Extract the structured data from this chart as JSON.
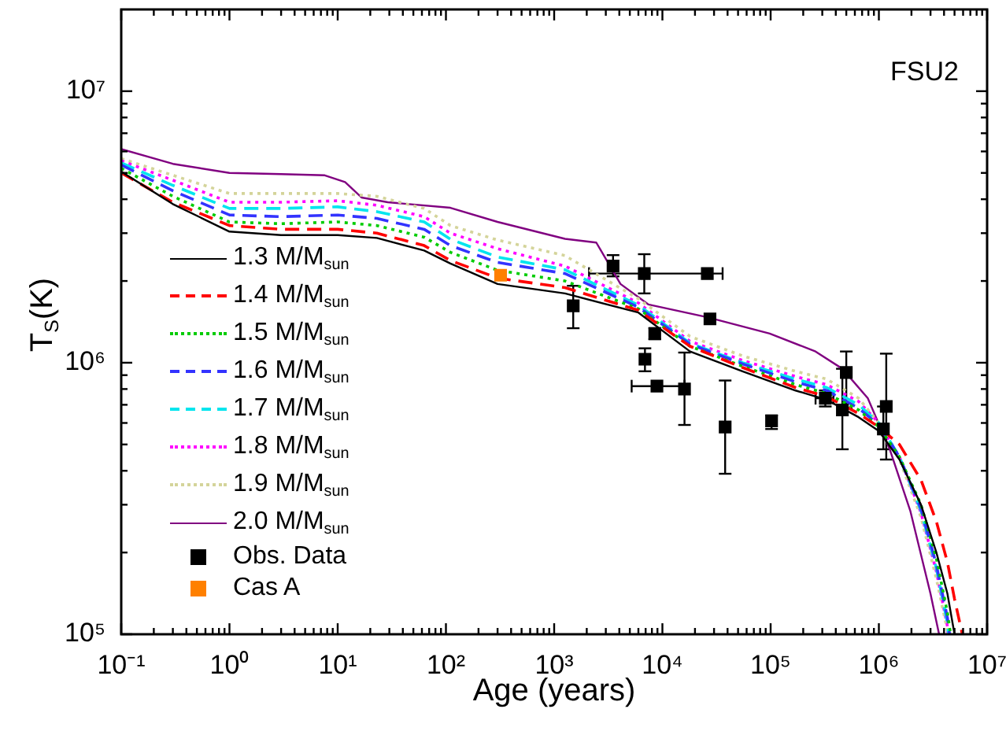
{
  "chart_data": {
    "type": "line",
    "title": "FSU2",
    "xlabel": "Age (years)",
    "ylabel": "T$_{S}$(K)",
    "log": "xy",
    "legend": "left",
    "xlim": [
      0.1,
      10000000
    ],
    "ylim": [
      100000,
      20000000
    ],
    "xticks": [
      {
        "value": 0.1,
        "label": "10⁻¹"
      },
      {
        "value": 0.2,
        "label": null
      },
      {
        "value": 0.3,
        "label": null
      },
      {
        "value": 0.4,
        "label": null
      },
      {
        "value": 0.5,
        "label": null
      },
      {
        "value": 0.6,
        "label": null
      },
      {
        "value": 0.7,
        "label": null
      },
      {
        "value": 0.8,
        "label": null
      },
      {
        "value": 0.9,
        "label": null
      },
      {
        "value": 1,
        "label": "10⁰"
      },
      {
        "value": 2,
        "label": null
      },
      {
        "value": 3,
        "label": null
      },
      {
        "value": 4,
        "label": null
      },
      {
        "value": 5,
        "label": null
      },
      {
        "value": 6,
        "label": null
      },
      {
        "value": 7,
        "label": null
      },
      {
        "value": 8,
        "label": null
      },
      {
        "value": 9,
        "label": null
      },
      {
        "value": 10,
        "label": "10¹"
      },
      {
        "value": 20,
        "label": null
      },
      {
        "value": 30,
        "label": null
      },
      {
        "value": 40,
        "label": null
      },
      {
        "value": 50,
        "label": null
      },
      {
        "value": 60,
        "label": null
      },
      {
        "value": 70,
        "label": null
      },
      {
        "value": 80,
        "label": null
      },
      {
        "value": 90,
        "label": null
      },
      {
        "value": 100,
        "label": "10²"
      },
      {
        "value": 200,
        "label": null
      },
      {
        "value": 300,
        "label": null
      },
      {
        "value": 400,
        "label": null
      },
      {
        "value": 500,
        "label": null
      },
      {
        "value": 600,
        "label": null
      },
      {
        "value": 700,
        "label": null
      },
      {
        "value": 800,
        "label": null
      },
      {
        "value": 900,
        "label": null
      },
      {
        "value": 1000,
        "label": "10³"
      },
      {
        "value": 2000,
        "label": null
      },
      {
        "value": 3000,
        "label": null
      },
      {
        "value": 4000,
        "label": null
      },
      {
        "value": 5000,
        "label": null
      },
      {
        "value": 6000,
        "label": null
      },
      {
        "value": 7000,
        "label": null
      },
      {
        "value": 8000,
        "label": null
      },
      {
        "value": 9000,
        "label": null
      },
      {
        "value": 10000,
        "label": "10⁴"
      },
      {
        "value": 20000,
        "label": null
      },
      {
        "value": 30000,
        "label": null
      },
      {
        "value": 40000,
        "label": null
      },
      {
        "value": 50000,
        "label": null
      },
      {
        "value": 60000,
        "label": null
      },
      {
        "value": 70000,
        "label": null
      },
      {
        "value": 80000,
        "label": null
      },
      {
        "value": 90000,
        "label": null
      },
      {
        "value": 100000,
        "label": "10⁵"
      },
      {
        "value": 200000,
        "label": null
      },
      {
        "value": 300000,
        "label": null
      },
      {
        "value": 400000,
        "label": null
      },
      {
        "value": 500000,
        "label": null
      },
      {
        "value": 600000,
        "label": null
      },
      {
        "value": 700000,
        "label": null
      },
      {
        "value": 800000,
        "label": null
      },
      {
        "value": 900000,
        "label": null
      },
      {
        "value": 1000000,
        "label": "10⁶"
      },
      {
        "value": 2000000,
        "label": null
      },
      {
        "value": 3000000,
        "label": null
      },
      {
        "value": 4000000,
        "label": null
      },
      {
        "value": 5000000,
        "label": null
      },
      {
        "value": 6000000,
        "label": null
      },
      {
        "value": 7000000,
        "label": null
      },
      {
        "value": 8000000,
        "label": null
      },
      {
        "value": 9000000,
        "label": null
      },
      {
        "value": 10000000,
        "label": "10⁷"
      }
    ],
    "yticks": [
      {
        "value": 100000,
        "label": "10⁵"
      },
      {
        "value": 200000,
        "label": null
      },
      {
        "value": 300000,
        "label": null
      },
      {
        "value": 400000,
        "label": null
      },
      {
        "value": 500000,
        "label": null
      },
      {
        "value": 600000,
        "label": null
      },
      {
        "value": 700000,
        "label": null
      },
      {
        "value": 800000,
        "label": null
      },
      {
        "value": 900000,
        "label": null
      },
      {
        "value": 1000000,
        "label": "10⁶"
      },
      {
        "value": 2000000,
        "label": null
      },
      {
        "value": 3000000,
        "label": null
      },
      {
        "value": 4000000,
        "label": null
      },
      {
        "value": 5000000,
        "label": null
      },
      {
        "value": 6000000,
        "label": null
      },
      {
        "value": 7000000,
        "label": null
      },
      {
        "value": 8000000,
        "label": null
      },
      {
        "value": 9000000,
        "label": null
      },
      {
        "value": 10000000,
        "label": "10⁷"
      }
    ],
    "series": [
      {
        "name": "1.3 M/M$_{sun}$",
        "type": "line",
        "color": "#000000",
        "line_style": "solid",
        "x": [
          0.1,
          0.3,
          1,
          3,
          10,
          23,
          63,
          110,
          300,
          1260,
          6000,
          18000,
          55000,
          170000,
          330000,
          650000,
          1000000,
          1550000,
          2450000,
          3400000,
          4300000,
          5000000
        ],
        "values": [
          5060000,
          3840000,
          3040000,
          2950000,
          2950000,
          2880000,
          2590000,
          2320000,
          1950000,
          1800000,
          1530000,
          1100000,
          930000,
          790000,
          730000,
          630000,
          560000,
          440000,
          300000,
          200000,
          141000,
          100000
        ]
      },
      {
        "name": "1.4 M/M$_{sun}$",
        "type": "line",
        "color": "#ff0000",
        "line_style": "dashed",
        "x": [
          0.1,
          0.3,
          1,
          3,
          10,
          23,
          63,
          110,
          300,
          1260,
          6000,
          18000,
          55000,
          170000,
          330000,
          650000,
          1000000,
          1550000,
          2450000,
          3400000,
          4300000,
          5000000,
          5900000
        ],
        "values": [
          5000000,
          3900000,
          3200000,
          3100000,
          3100000,
          3000000,
          2700000,
          2380000,
          2050000,
          1890000,
          1560000,
          1150000,
          960000,
          810000,
          750000,
          650000,
          580000,
          500000,
          370000,
          260000,
          184000,
          135000,
          100000
        ]
      },
      {
        "name": "1.5 M/M$_{sun}$",
        "type": "line",
        "color": "#00cc00",
        "line_style": "dotted",
        "x": [
          0.1,
          0.3,
          1,
          3,
          10,
          23,
          63,
          110,
          300,
          1260,
          6000,
          18000,
          55000,
          170000,
          330000,
          650000,
          1000000,
          1550000,
          2450000,
          3400000,
          4300000,
          4600000
        ],
        "values": [
          5200000,
          4100000,
          3300000,
          3250000,
          3300000,
          3200000,
          2900000,
          2550000,
          2190000,
          2000000,
          1580000,
          1150000,
          970000,
          830000,
          770000,
          670000,
          580000,
          450000,
          300000,
          190000,
          120000,
          100000
        ]
      },
      {
        "name": "1.6 M/M$_{sun}$",
        "type": "line",
        "color": "#3333ff",
        "line_style": "dashed",
        "x": [
          0.1,
          0.3,
          1,
          3,
          10,
          23,
          63,
          110,
          300,
          1260,
          6000,
          18000,
          55000,
          170000,
          330000,
          650000,
          1000000,
          1550000,
          2450000,
          3400000,
          4300000,
          4500000
        ],
        "values": [
          5350000,
          4300000,
          3500000,
          3450000,
          3500000,
          3400000,
          3100000,
          2700000,
          2340000,
          2130000,
          1600000,
          1170000,
          990000,
          850000,
          790000,
          680000,
          590000,
          450000,
          290000,
          180000,
          115000,
          100000
        ]
      },
      {
        "name": "1.7 M/M$_{sun}$",
        "type": "line",
        "color": "#00e5ee",
        "line_style": "dashed",
        "x": [
          0.1,
          0.3,
          1,
          3,
          10,
          23,
          63,
          110,
          300,
          1260,
          6000,
          18000,
          55000,
          170000,
          330000,
          650000,
          1000000,
          1550000,
          2450000,
          3400000,
          4300000,
          4400000
        ],
        "values": [
          5450000,
          4500000,
          3700000,
          3700000,
          3750000,
          3600000,
          3300000,
          2850000,
          2450000,
          2200000,
          1630000,
          1180000,
          1000000,
          870000,
          810000,
          700000,
          600000,
          450000,
          285000,
          175000,
          110000,
          100000
        ]
      },
      {
        "name": "1.8 M/M$_{sun}$",
        "type": "line",
        "color": "#ff00ff",
        "line_style": "dotted",
        "x": [
          0.1,
          0.3,
          1,
          3,
          10,
          23,
          63,
          110,
          300,
          1260,
          6000,
          18000,
          55000,
          170000,
          330000,
          650000,
          1000000,
          1550000,
          2450000,
          3400000,
          4300000,
          4350000
        ],
        "values": [
          5550000,
          4700000,
          3900000,
          3900000,
          3950000,
          3800000,
          3450000,
          3000000,
          2630000,
          2270000,
          1660000,
          1200000,
          1020000,
          890000,
          830000,
          720000,
          600000,
          450000,
          280000,
          170000,
          107000,
          100000
        ]
      },
      {
        "name": "1.9 M/M$_{sun}$",
        "type": "line",
        "color": "#d4d49a",
        "line_style": "dotted",
        "x": [
          0.1,
          0.3,
          1,
          3,
          10,
          23,
          63,
          110,
          300,
          1260,
          6000,
          18000,
          55000,
          170000,
          330000,
          650000,
          1000000,
          1550000,
          2450000,
          3400000,
          4300000,
          4320000
        ],
        "values": [
          5650000,
          4900000,
          4200000,
          4200000,
          4200000,
          4100000,
          3700000,
          3200000,
          2830000,
          2480000,
          1720000,
          1250000,
          1060000,
          930000,
          870000,
          740000,
          600000,
          440000,
          270000,
          160000,
          103000,
          100000
        ]
      },
      {
        "name": "2.0 M/M$_{sun}$",
        "type": "line",
        "color": "#800080",
        "line_style": "solid",
        "x": [
          0.1,
          0.3,
          1,
          3,
          7.6,
          11.7,
          16.6,
          29,
          110,
          300,
          1260,
          2450,
          4100,
          7400,
          26000,
          98000,
          260000,
          460000,
          790000,
          1260000,
          1950000,
          3000000,
          3600000
        ],
        "values": [
          6120000,
          5400000,
          5000000,
          4950000,
          4900000,
          4630000,
          4060000,
          3900000,
          3720000,
          3300000,
          2860000,
          2770000,
          1950000,
          1640000,
          1470000,
          1280000,
          1100000,
          950000,
          740000,
          480000,
          285000,
          141000,
          100000
        ]
      },
      {
        "name": "Obs. Data",
        "type": "scatter",
        "color": "#000000",
        "marker": "square",
        "x": [
          1500,
          3500,
          6800,
          26000,
          27500,
          8500,
          6900,
          8900,
          16000,
          38000,
          102000,
          320000,
          500000,
          460000,
          1170000,
          1100000
        ],
        "values": [
          1620000,
          2270000,
          2130000,
          2130000,
          1450000,
          1280000,
          1030000,
          820000,
          800000,
          580000,
          610000,
          740000,
          920000,
          670000,
          690000,
          570000
        ],
        "errors": [
          [
            1340000,
            1920000
          ],
          [
            2080000,
            2490000
          ],
          [
            1800000,
            2510000
          ],
          null,
          null,
          [
            1220000,
            1340000
          ],
          [
            930000,
            1130000
          ],
          null,
          [
            590000,
            1090000
          ],
          [
            390000,
            860000
          ],
          [
            570000,
            640000
          ],
          [
            690000,
            790000
          ],
          [
            680000,
            1100000
          ],
          [
            480000,
            950000
          ],
          [
            440000,
            1080000
          ],
          [
            480000,
            690000
          ]
        ],
        "xerrors": [
          null,
          null,
          null,
          [
            2100,
            36000
          ],
          null,
          null,
          null,
          [
            5200,
            16000
          ],
          null,
          null,
          null,
          [
            260000,
            380000
          ],
          null,
          null,
          null,
          null
        ]
      },
      {
        "name": "Cas A",
        "type": "scatter",
        "color": "#ff8000",
        "marker": "square",
        "x": [
          320
        ],
        "values": [
          2100000
        ]
      }
    ]
  }
}
